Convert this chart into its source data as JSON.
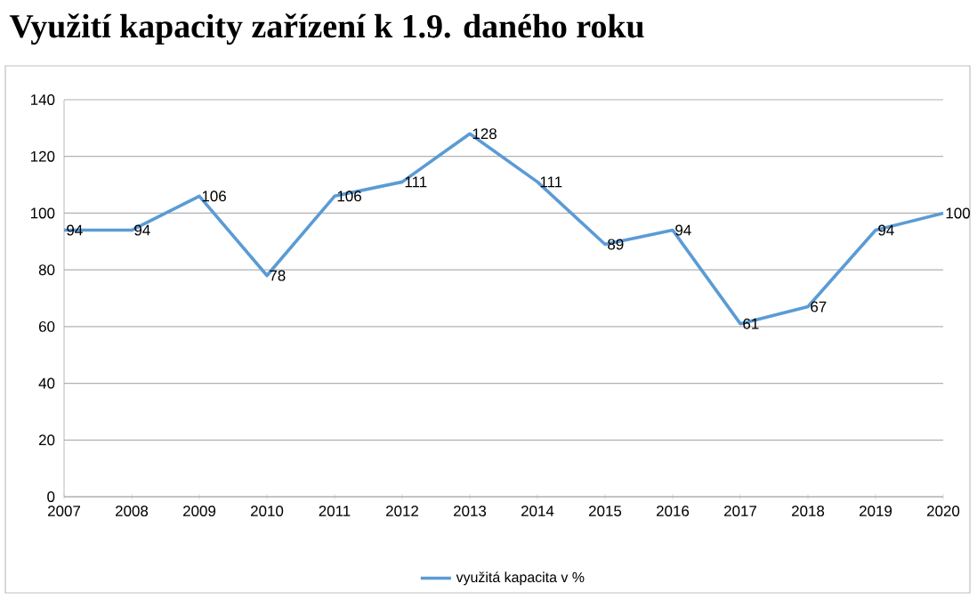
{
  "chart_data": {
    "type": "line",
    "title": "Využití kapacity zařízení k 1.9. daného roku",
    "categories": [
      "2007",
      "2008",
      "2009",
      "2010",
      "2011",
      "2012",
      "2013",
      "2014",
      "2015",
      "2016",
      "2017",
      "2018",
      "2019",
      "2020"
    ],
    "series": [
      {
        "name": "využitá kapacita v %",
        "color": "#5b9bd5",
        "values": [
          94,
          94,
          106,
          78,
          106,
          111,
          128,
          111,
          89,
          94,
          61,
          67,
          94,
          100
        ]
      }
    ],
    "ylim": [
      0,
      140
    ],
    "yticks": [
      0,
      20,
      40,
      60,
      80,
      100,
      120,
      140
    ],
    "grid": "y",
    "legend": "bottom",
    "data_labels": true,
    "marker": "none",
    "line_style": "solid"
  }
}
